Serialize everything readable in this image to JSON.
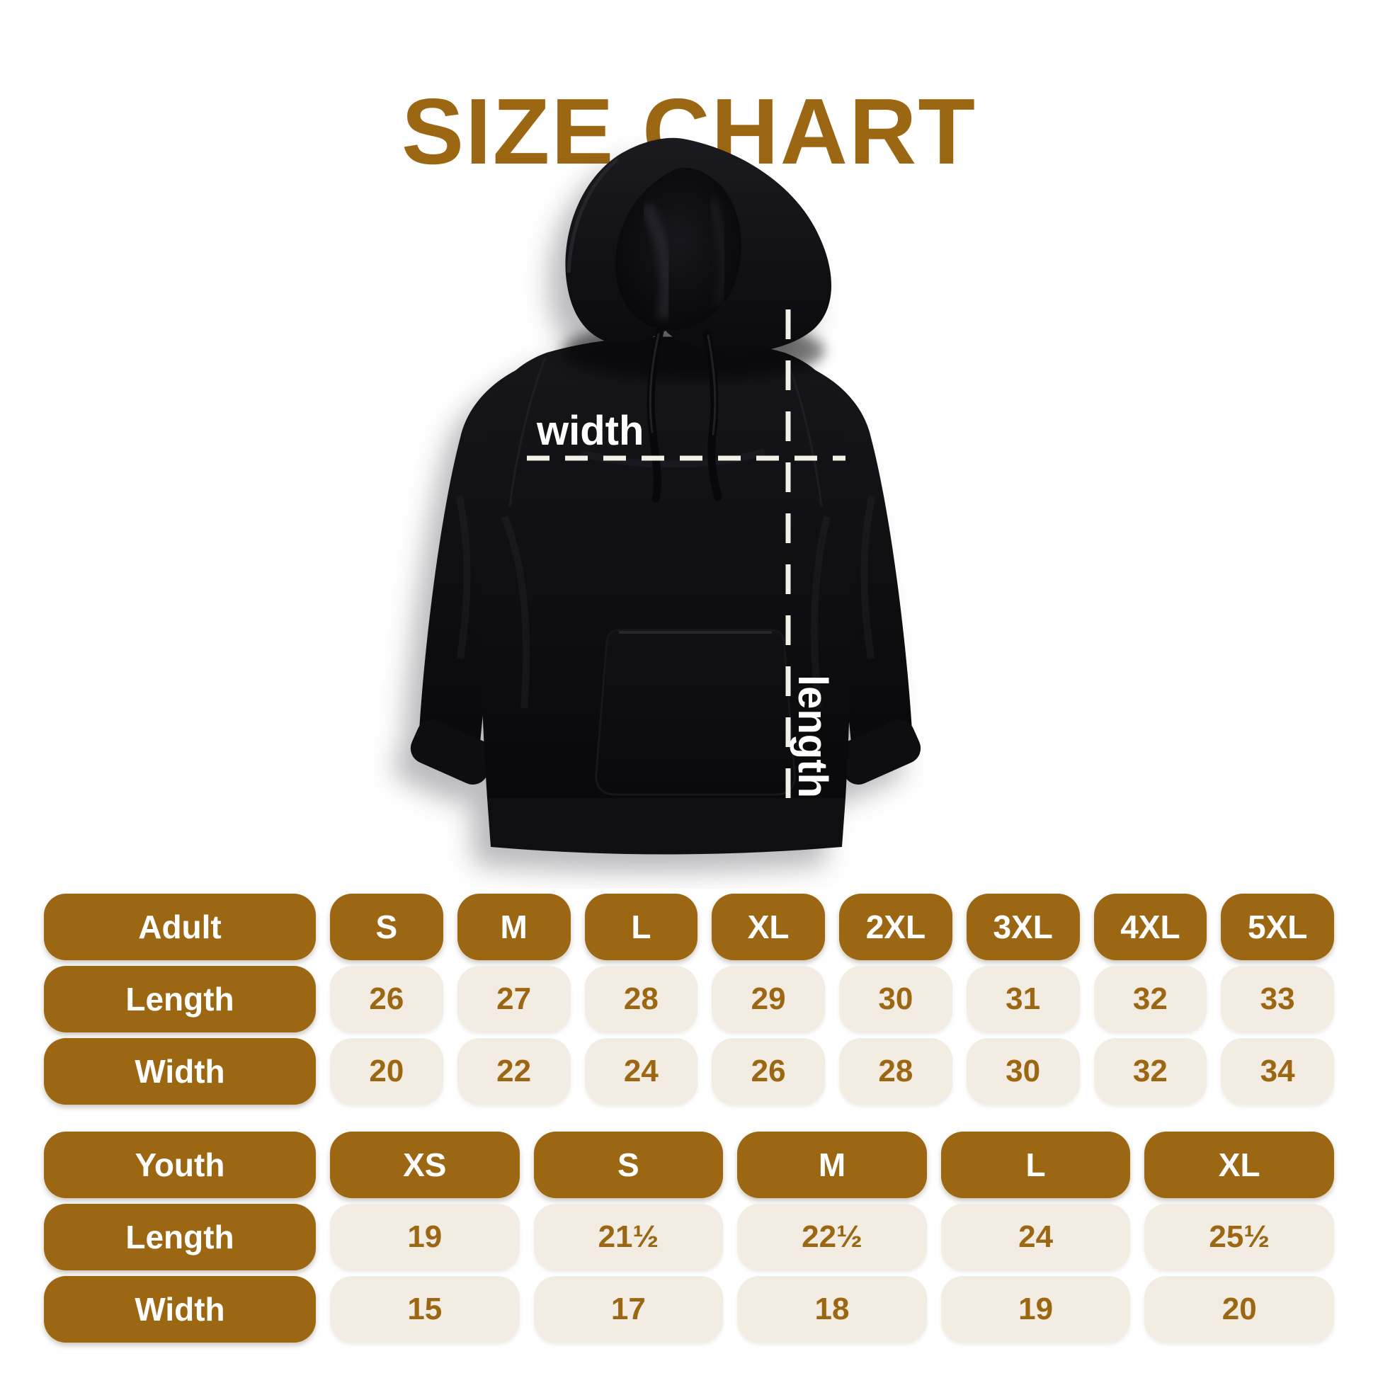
{
  "page": {
    "title": "SIZE CHART"
  },
  "colors": {
    "brown": "#9c6712",
    "beige": "#f2ece2",
    "dash": "#f3f0e7",
    "label_white": "#ffffff",
    "background": "#ffffff"
  },
  "diagram": {
    "garment": "pullover hoodie",
    "width_label": "width",
    "length_label": "length"
  },
  "adult_table": {
    "header": {
      "label": "Adult",
      "sizes": [
        "S",
        "M",
        "L",
        "XL",
        "2XL",
        "3XL",
        "4XL",
        "5XL"
      ]
    },
    "rows": [
      {
        "label": "Length",
        "values": [
          "26",
          "27",
          "28",
          "29",
          "30",
          "31",
          "32",
          "33"
        ]
      },
      {
        "label": "Width",
        "values": [
          "20",
          "22",
          "24",
          "26",
          "28",
          "30",
          "32",
          "34"
        ]
      }
    ]
  },
  "youth_table": {
    "header": {
      "label": "Youth",
      "sizes": [
        "XS",
        "S",
        "M",
        "L",
        "XL"
      ]
    },
    "rows": [
      {
        "label": "Length",
        "values": [
          "19",
          "21½",
          "22½",
          "24",
          "25½"
        ]
      },
      {
        "label": "Width",
        "values": [
          "15",
          "17",
          "18",
          "19",
          "20"
        ]
      }
    ]
  }
}
